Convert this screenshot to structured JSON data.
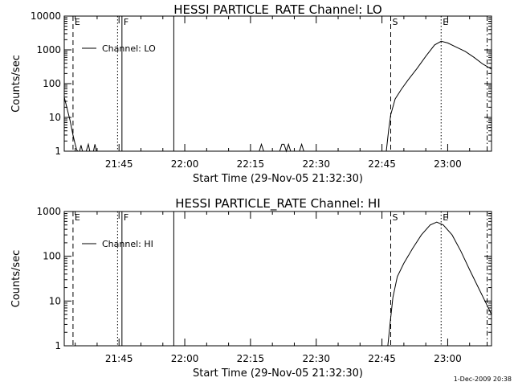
{
  "footer": {
    "stamp": "1-Dec-2009 20:38"
  },
  "chart_data": [
    {
      "type": "line",
      "title": "HESSI PARTICLE_RATE Channel: LO",
      "xlabel": "Start Time (29-Nov-05 21:32:30)",
      "ylabel": "Counts/sec",
      "xlim": [
        "21:32:30",
        "23:10:00"
      ],
      "ylim": [
        1,
        10000
      ],
      "yscale": "log",
      "x_ticks": [
        "21:45",
        "22:00",
        "22:15",
        "22:30",
        "22:45",
        "23:00"
      ],
      "y_ticks": [
        "1",
        "10",
        "100",
        "1000",
        "10000"
      ],
      "legend": "top-left",
      "series": [
        {
          "name": "Channel: LO",
          "points": [
            [
              "21:32:30",
              40
            ],
            [
              "21:33:10",
              18
            ],
            [
              "21:33:50",
              8
            ],
            [
              "21:34:30",
              3
            ],
            [
              "21:35:00",
              1.6
            ],
            [
              "21:35:20",
              1.1
            ],
            [
              "21:35:35",
              1
            ],
            [
              "21:36:00",
              1
            ],
            [
              "21:36:20",
              1.5
            ],
            [
              "21:36:40",
              1
            ],
            [
              "21:37:30",
              1
            ],
            [
              "21:38:00",
              1.6
            ],
            [
              "21:38:20",
              1
            ],
            [
              "21:39:10",
              1
            ],
            [
              "21:39:30",
              1.6
            ],
            [
              "21:39:50",
              1
            ],
            [
              "22:17:00",
              1
            ],
            [
              "22:17:30",
              1.6
            ],
            [
              "22:18:00",
              1
            ],
            [
              "22:21:40",
              1
            ],
            [
              "22:22:10",
              1.6
            ],
            [
              "22:22:40",
              1.6
            ],
            [
              "22:23:10",
              1
            ],
            [
              "22:23:40",
              1.6
            ],
            [
              "22:24:10",
              1
            ],
            [
              "22:26:10",
              1
            ],
            [
              "22:26:40",
              1.6
            ],
            [
              "22:27:10",
              1
            ],
            [
              "22:46:00",
              1
            ],
            [
              "22:46:30",
              4
            ],
            [
              "22:47:00",
              12
            ],
            [
              "22:48:00",
              35
            ],
            [
              "22:49:30",
              70
            ],
            [
              "22:51:00",
              130
            ],
            [
              "22:53:00",
              280
            ],
            [
              "22:55:00",
              650
            ],
            [
              "22:57:00",
              1400
            ],
            [
              "22:58:30",
              1800
            ],
            [
              "23:00:00",
              1600
            ],
            [
              "23:02:00",
              1200
            ],
            [
              "23:04:00",
              900
            ],
            [
              "23:06:00",
              600
            ],
            [
              "23:08:00",
              380
            ],
            [
              "23:10:00",
              270
            ]
          ]
        }
      ],
      "markers": [
        {
          "time": "21:34:30",
          "label": "E",
          "style": "dashed"
        },
        {
          "time": "21:44:40",
          "label": "",
          "style": "dotted"
        },
        {
          "time": "21:45:40",
          "label": "F",
          "style": "solid"
        },
        {
          "time": "21:57:30",
          "label": "",
          "style": "solid"
        },
        {
          "time": "22:47:00",
          "label": "S",
          "style": "dashed"
        },
        {
          "time": "22:58:30",
          "label": "E",
          "style": "dotted"
        },
        {
          "time": "23:09:00",
          "label": "",
          "style": "dashdot"
        }
      ]
    },
    {
      "type": "line",
      "title": "HESSI PARTICLE_RATE Channel: HI",
      "xlabel": "Start Time (29-Nov-05 21:32:30)",
      "ylabel": "Counts/sec",
      "xlim": [
        "21:32:30",
        "23:10:00"
      ],
      "ylim": [
        1,
        1000
      ],
      "yscale": "log",
      "x_ticks": [
        "21:45",
        "22:00",
        "22:15",
        "22:30",
        "22:45",
        "23:00"
      ],
      "y_ticks": [
        "1",
        "10",
        "100",
        "1000"
      ],
      "legend": "top-left",
      "series": [
        {
          "name": "Channel: HI",
          "points": [
            [
              "22:46:20",
              1
            ],
            [
              "22:46:50",
              3
            ],
            [
              "22:47:30",
              12
            ],
            [
              "22:48:30",
              35
            ],
            [
              "22:50:00",
              70
            ],
            [
              "22:52:00",
              150
            ],
            [
              "22:54:00",
              300
            ],
            [
              "22:56:00",
              500
            ],
            [
              "22:57:30",
              580
            ],
            [
              "22:59:00",
              500
            ],
            [
              "23:01:00",
              300
            ],
            [
              "23:03:00",
              130
            ],
            [
              "23:05:00",
              50
            ],
            [
              "23:07:00",
              20
            ],
            [
              "23:09:00",
              8
            ],
            [
              "23:10:00",
              5
            ]
          ]
        }
      ],
      "markers": [
        {
          "time": "21:34:30",
          "label": "E",
          "style": "dashed"
        },
        {
          "time": "21:44:40",
          "label": "",
          "style": "dotted"
        },
        {
          "time": "21:45:40",
          "label": "F",
          "style": "solid"
        },
        {
          "time": "21:57:30",
          "label": "",
          "style": "solid"
        },
        {
          "time": "22:47:00",
          "label": "S",
          "style": "dashed"
        },
        {
          "time": "22:58:30",
          "label": "E",
          "style": "dotted"
        },
        {
          "time": "23:09:00",
          "label": "",
          "style": "dashdot"
        }
      ]
    }
  ]
}
